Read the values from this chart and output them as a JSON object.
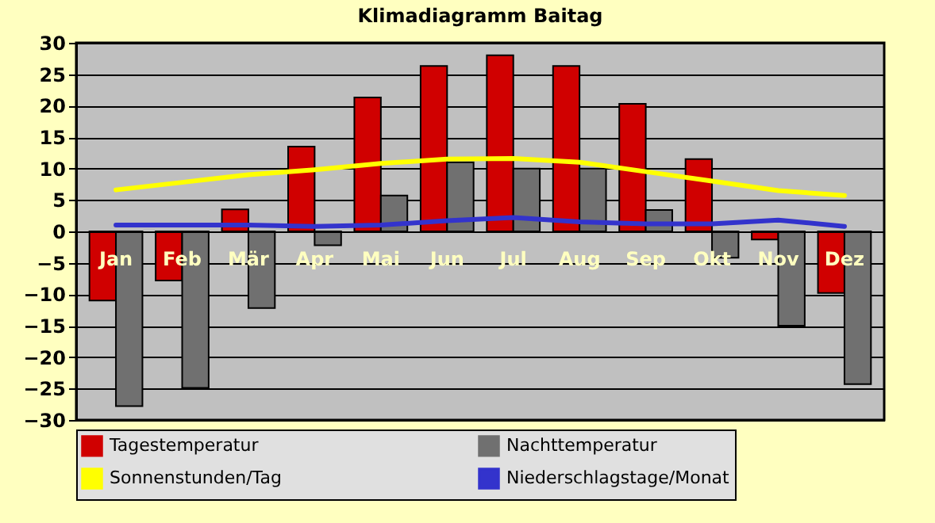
{
  "chart_data": {
    "type": "bar",
    "title": "Klimadiagramm Baitag",
    "categories": [
      "Jan",
      "Feb",
      "Mär",
      "Apr",
      "Mai",
      "Jun",
      "Jul",
      "Aug",
      "Sep",
      "Okt",
      "Nov",
      "Dez"
    ],
    "series": [
      {
        "name": "Tagestemperatur",
        "type": "bar",
        "color": "#d00000",
        "values": [
          -11,
          -7.8,
          3.5,
          13.5,
          21.3,
          26.3,
          28,
          26.3,
          20.3,
          11.5,
          -1.3,
          -9.8
        ]
      },
      {
        "name": "Nachttemperatur",
        "type": "bar",
        "color": "#707070",
        "values": [
          -27.8,
          -24.9,
          -12.2,
          -2.2,
          5.7,
          11,
          10,
          10,
          3.4,
          -4.2,
          -15,
          -24.3
        ]
      },
      {
        "name": "Sonnenstunden/Tag",
        "type": "line",
        "color": "#ffff00",
        "values": [
          6.6,
          7.8,
          9,
          9.8,
          10.8,
          11.5,
          11.6,
          11,
          9.5,
          8,
          6.5,
          5.7
        ]
      },
      {
        "name": "Niederschlagstage/Monat",
        "type": "line",
        "color": "#3333cc",
        "values": [
          1,
          1,
          1,
          0.8,
          1,
          1.7,
          2.2,
          1.5,
          1.2,
          1.2,
          1.8,
          0.8
        ]
      }
    ],
    "ylim": [
      -30,
      30
    ],
    "yticks": [
      -30,
      -25,
      -20,
      -15,
      -10,
      -5,
      0,
      5,
      10,
      15,
      20,
      25,
      30
    ],
    "grid": "y",
    "legend": "bottom"
  }
}
